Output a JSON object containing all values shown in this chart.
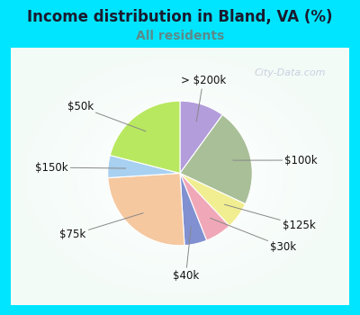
{
  "title": "Income distribution in Bland, VA (%)",
  "subtitle": "All residents",
  "title_color": "#1a1a2e",
  "subtitle_color": "#5b8a8a",
  "background_top_color": "#00e5ff",
  "chart_bg_color_center": "#e8f5ee",
  "chart_bg_color_edge": "#c8ece0",
  "watermark": "City-Data.com",
  "segments": [
    {
      "label": "> $200k",
      "value": 10,
      "color": "#b39ddb"
    },
    {
      "label": "$100k",
      "value": 22,
      "color": "#a8bf98"
    },
    {
      "label": "$125k",
      "value": 6,
      "color": "#f0ee90"
    },
    {
      "label": "$30k",
      "value": 6,
      "color": "#f0a8b8"
    },
    {
      "label": "$40k",
      "value": 5,
      "color": "#8090d0"
    },
    {
      "label": "$75k",
      "value": 25,
      "color": "#f5c8a0"
    },
    {
      "label": "$150k",
      "value": 5,
      "color": "#a8d0f0"
    },
    {
      "label": "$50k",
      "value": 21,
      "color": "#b8e860"
    }
  ],
  "label_fontsize": 8.5,
  "label_color": "#111111",
  "figsize": [
    4.0,
    3.5
  ],
  "dpi": 100,
  "title_fontsize": 12,
  "subtitle_fontsize": 10
}
